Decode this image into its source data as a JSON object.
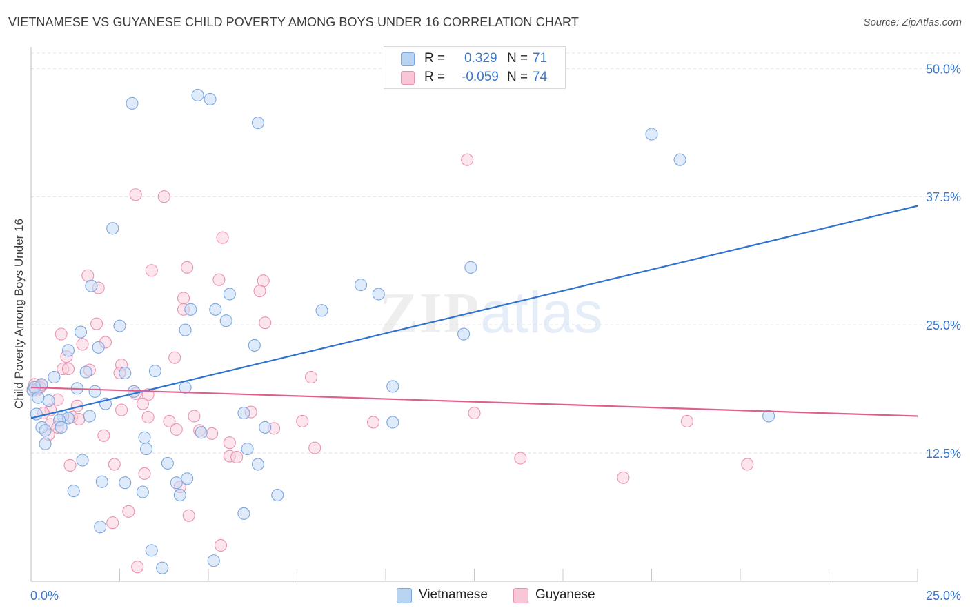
{
  "title": "VIETNAMESE VS GUYANESE CHILD POVERTY AMONG BOYS UNDER 16 CORRELATION CHART",
  "source": "Source: ZipAtlas.com",
  "watermark": {
    "zip": "ZIP",
    "atlas": "atlas"
  },
  "legend": {
    "rows": [
      {
        "r_label": "R =",
        "r_value": "0.329",
        "n_label": "N =",
        "n_value": "71",
        "color": "#b9d3f3",
        "border": "#7aa7e0"
      },
      {
        "r_label": "R =",
        "r_value": "-0.059",
        "n_label": "N =",
        "n_value": "74",
        "color": "#f9c6d6",
        "border": "#ea93b0"
      }
    ]
  },
  "bottom_legend": [
    {
      "label": "Vietnamese",
      "color": "#b9d3f3",
      "border": "#7aa7e0"
    },
    {
      "label": "Guyanese",
      "color": "#f9c6d6",
      "border": "#ea93b0"
    }
  ],
  "chart_data": {
    "type": "scatter",
    "title": "VIETNAMESE VS GUYANESE CHILD POVERTY AMONG BOYS UNDER 16 CORRELATION CHART",
    "xlabel": "",
    "ylabel": "Child Poverty Among Boys Under 16",
    "xlim": [
      0,
      25
    ],
    "ylim": [
      0,
      51.5
    ],
    "x_tick_labels": [
      "0.0%",
      "25.0%"
    ],
    "y_ticks": [
      12.5,
      25.0,
      37.5,
      50.0
    ],
    "y_tick_labels": [
      "12.5%",
      "25.0%",
      "37.5%",
      "50.0%"
    ],
    "grid": true,
    "series": [
      {
        "name": "Vietnamese",
        "color": "#7aa7e0",
        "fill": "#c5dbf5",
        "line_color": "#2f73cf",
        "trend": {
          "x": [
            0,
            25
          ],
          "y": [
            15.9,
            36.6
          ]
        },
        "points": [
          [
            2.85,
            46.6
          ],
          [
            4.7,
            47.4
          ],
          [
            5.05,
            47.0
          ],
          [
            6.4,
            44.7
          ],
          [
            17.5,
            43.6
          ],
          [
            18.3,
            41.1
          ],
          [
            2.3,
            34.4
          ],
          [
            12.4,
            30.6
          ],
          [
            9.3,
            28.9
          ],
          [
            9.8,
            28.0
          ],
          [
            1.7,
            28.8
          ],
          [
            5.6,
            28.0
          ],
          [
            4.5,
            26.5
          ],
          [
            5.2,
            26.5
          ],
          [
            8.2,
            26.4
          ],
          [
            5.5,
            25.4
          ],
          [
            2.5,
            24.9
          ],
          [
            1.4,
            24.3
          ],
          [
            4.35,
            24.5
          ],
          [
            12.2,
            24.1
          ],
          [
            6.3,
            23.0
          ],
          [
            1.9,
            22.8
          ],
          [
            1.05,
            22.5
          ],
          [
            3.5,
            20.5
          ],
          [
            2.65,
            20.3
          ],
          [
            1.55,
            20.4
          ],
          [
            0.65,
            19.9
          ],
          [
            0.3,
            19.2
          ],
          [
            4.35,
            18.9
          ],
          [
            10.2,
            19.0
          ],
          [
            1.3,
            18.8
          ],
          [
            1.8,
            18.5
          ],
          [
            2.9,
            18.5
          ],
          [
            0.5,
            17.6
          ],
          [
            2.1,
            17.3
          ],
          [
            6.0,
            16.4
          ],
          [
            0.15,
            16.3
          ],
          [
            0.9,
            16.1
          ],
          [
            1.65,
            16.1
          ],
          [
            1.05,
            15.9
          ],
          [
            0.8,
            15.7
          ],
          [
            20.8,
            16.1
          ],
          [
            10.2,
            15.5
          ],
          [
            0.3,
            15.0
          ],
          [
            0.4,
            14.7
          ],
          [
            0.85,
            15.0
          ],
          [
            6.6,
            15.0
          ],
          [
            4.8,
            14.5
          ],
          [
            3.2,
            14.0
          ],
          [
            0.4,
            13.4
          ],
          [
            3.25,
            12.9
          ],
          [
            6.1,
            12.9
          ],
          [
            1.45,
            11.8
          ],
          [
            3.85,
            11.5
          ],
          [
            6.4,
            11.4
          ],
          [
            2.0,
            9.7
          ],
          [
            2.65,
            9.6
          ],
          [
            4.1,
            9.6
          ],
          [
            4.4,
            10.0
          ],
          [
            1.2,
            8.8
          ],
          [
            3.15,
            8.7
          ],
          [
            4.2,
            8.4
          ],
          [
            6.95,
            8.4
          ],
          [
            6.0,
            6.6
          ],
          [
            1.95,
            5.3
          ],
          [
            3.4,
            3.0
          ],
          [
            3.7,
            1.3
          ],
          [
            5.15,
            2.0
          ],
          [
            0.05,
            18.6
          ],
          [
            0.1,
            18.9
          ],
          [
            0.2,
            17.9
          ]
        ]
      },
      {
        "name": "Guyanese",
        "color": "#ea93b0",
        "fill": "#f9cfdc",
        "line_color": "#e0608d",
        "trend": {
          "x": [
            0,
            25
          ],
          "y": [
            18.9,
            16.1
          ]
        },
        "points": [
          [
            12.3,
            41.1
          ],
          [
            2.95,
            37.7
          ],
          [
            3.75,
            37.5
          ],
          [
            5.4,
            33.5
          ],
          [
            3.4,
            30.3
          ],
          [
            4.4,
            30.6
          ],
          [
            1.6,
            29.8
          ],
          [
            5.3,
            29.4
          ],
          [
            6.55,
            29.3
          ],
          [
            1.9,
            28.6
          ],
          [
            6.45,
            28.3
          ],
          [
            4.3,
            27.6
          ],
          [
            4.3,
            26.5
          ],
          [
            1.85,
            25.1
          ],
          [
            6.6,
            25.2
          ],
          [
            0.85,
            24.1
          ],
          [
            1.45,
            23.1
          ],
          [
            2.1,
            23.3
          ],
          [
            4.05,
            21.8
          ],
          [
            1.0,
            21.9
          ],
          [
            0.9,
            20.7
          ],
          [
            2.55,
            21.1
          ],
          [
            1.05,
            20.7
          ],
          [
            1.65,
            20.6
          ],
          [
            2.5,
            20.3
          ],
          [
            7.9,
            19.9
          ],
          [
            0.2,
            18.8
          ],
          [
            0.3,
            19.1
          ],
          [
            2.95,
            18.3
          ],
          [
            3.3,
            18.2
          ],
          [
            0.75,
            17.7
          ],
          [
            0.55,
            16.7
          ],
          [
            1.3,
            17.1
          ],
          [
            3.15,
            17.3
          ],
          [
            2.55,
            16.7
          ],
          [
            6.2,
            16.5
          ],
          [
            12.5,
            16.4
          ],
          [
            0.35,
            16.4
          ],
          [
            1.15,
            16.0
          ],
          [
            1.35,
            15.8
          ],
          [
            3.3,
            16.0
          ],
          [
            3.9,
            15.6
          ],
          [
            4.6,
            16.1
          ],
          [
            7.65,
            15.6
          ],
          [
            9.65,
            15.5
          ],
          [
            18.5,
            15.6
          ],
          [
            0.55,
            15.3
          ],
          [
            0.75,
            15.0
          ],
          [
            4.1,
            14.8
          ],
          [
            4.75,
            14.7
          ],
          [
            5.1,
            14.4
          ],
          [
            6.85,
            14.9
          ],
          [
            0.5,
            14.3
          ],
          [
            2.05,
            14.2
          ],
          [
            5.6,
            13.5
          ],
          [
            8.0,
            13.0
          ],
          [
            5.6,
            12.2
          ],
          [
            5.8,
            12.1
          ],
          [
            13.8,
            12.0
          ],
          [
            1.1,
            11.3
          ],
          [
            2.35,
            11.4
          ],
          [
            20.2,
            11.4
          ],
          [
            3.2,
            10.5
          ],
          [
            16.7,
            10.1
          ],
          [
            4.2,
            9.2
          ],
          [
            2.75,
            6.8
          ],
          [
            4.45,
            6.4
          ],
          [
            2.3,
            5.7
          ],
          [
            5.35,
            3.5
          ],
          [
            3.0,
            1.4
          ],
          [
            0.05,
            18.7
          ],
          [
            0.1,
            19.2
          ],
          [
            0.15,
            18.6
          ],
          [
            0.25,
            18.9
          ]
        ]
      }
    ]
  }
}
